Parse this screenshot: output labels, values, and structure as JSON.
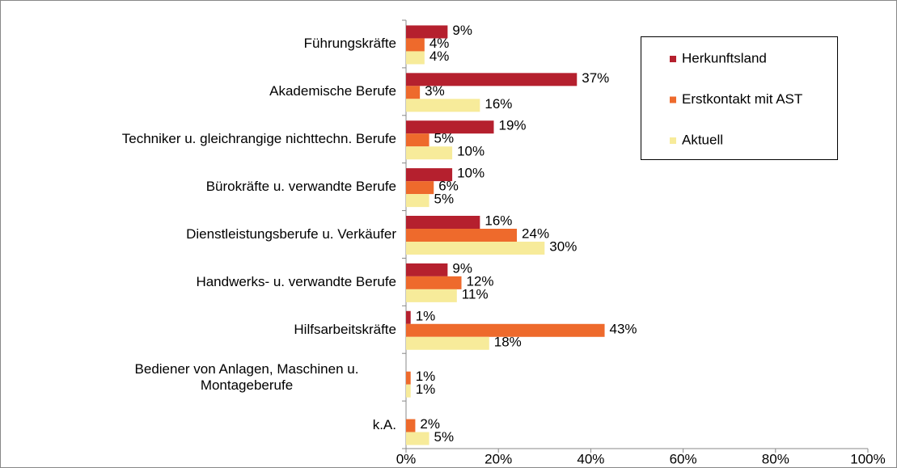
{
  "chart_data": {
    "type": "bar",
    "orientation": "horizontal",
    "categories": [
      "Führungskräfte",
      "Akademische Berufe",
      "Techniker u. gleichrangige nichttechn. Berufe",
      "Bürokräfte u. verwandte Berufe",
      "Dienstleistungsberufe u. Verkäufer",
      "Handwerks- u. verwandte Berufe",
      "Hilfsarbeitskräfte",
      "Bediener von Anlagen, Maschinen u. Montageberufe",
      "k.A."
    ],
    "series": [
      {
        "name": "Herkunftsland",
        "color": "#b5202e",
        "values": [
          9,
          37,
          19,
          10,
          16,
          9,
          1,
          null,
          null
        ],
        "value_labels": [
          "9%",
          "37%",
          "19%",
          "10%",
          "16%",
          "9%",
          "1%",
          null,
          null
        ]
      },
      {
        "name": "Erstkontakt mit AST",
        "color": "#ee6a2c",
        "values": [
          4,
          3,
          5,
          6,
          24,
          12,
          43,
          1,
          2
        ],
        "value_labels": [
          "4%",
          "3%",
          "5%",
          "6%",
          "24%",
          "12%",
          "43%",
          "1%",
          "2%"
        ]
      },
      {
        "name": "Aktuell",
        "color": "#f7eb9a",
        "values": [
          4,
          16,
          10,
          5,
          30,
          11,
          18,
          1,
          5
        ],
        "value_labels": [
          "4%",
          "16%",
          "10%",
          "5%",
          "30%",
          "11%",
          "18%",
          "1%",
          "5%"
        ]
      }
    ],
    "xlim": [
      0,
      100
    ],
    "xticks": [
      {
        "value": 0,
        "label": "0%"
      },
      {
        "value": 20,
        "label": "20%"
      },
      {
        "value": 40,
        "label": "40%"
      },
      {
        "value": 60,
        "label": "60%"
      },
      {
        "value": 80,
        "label": "80%"
      },
      {
        "value": 100,
        "label": "100%"
      }
    ],
    "grid": false,
    "legend": "upper right"
  }
}
